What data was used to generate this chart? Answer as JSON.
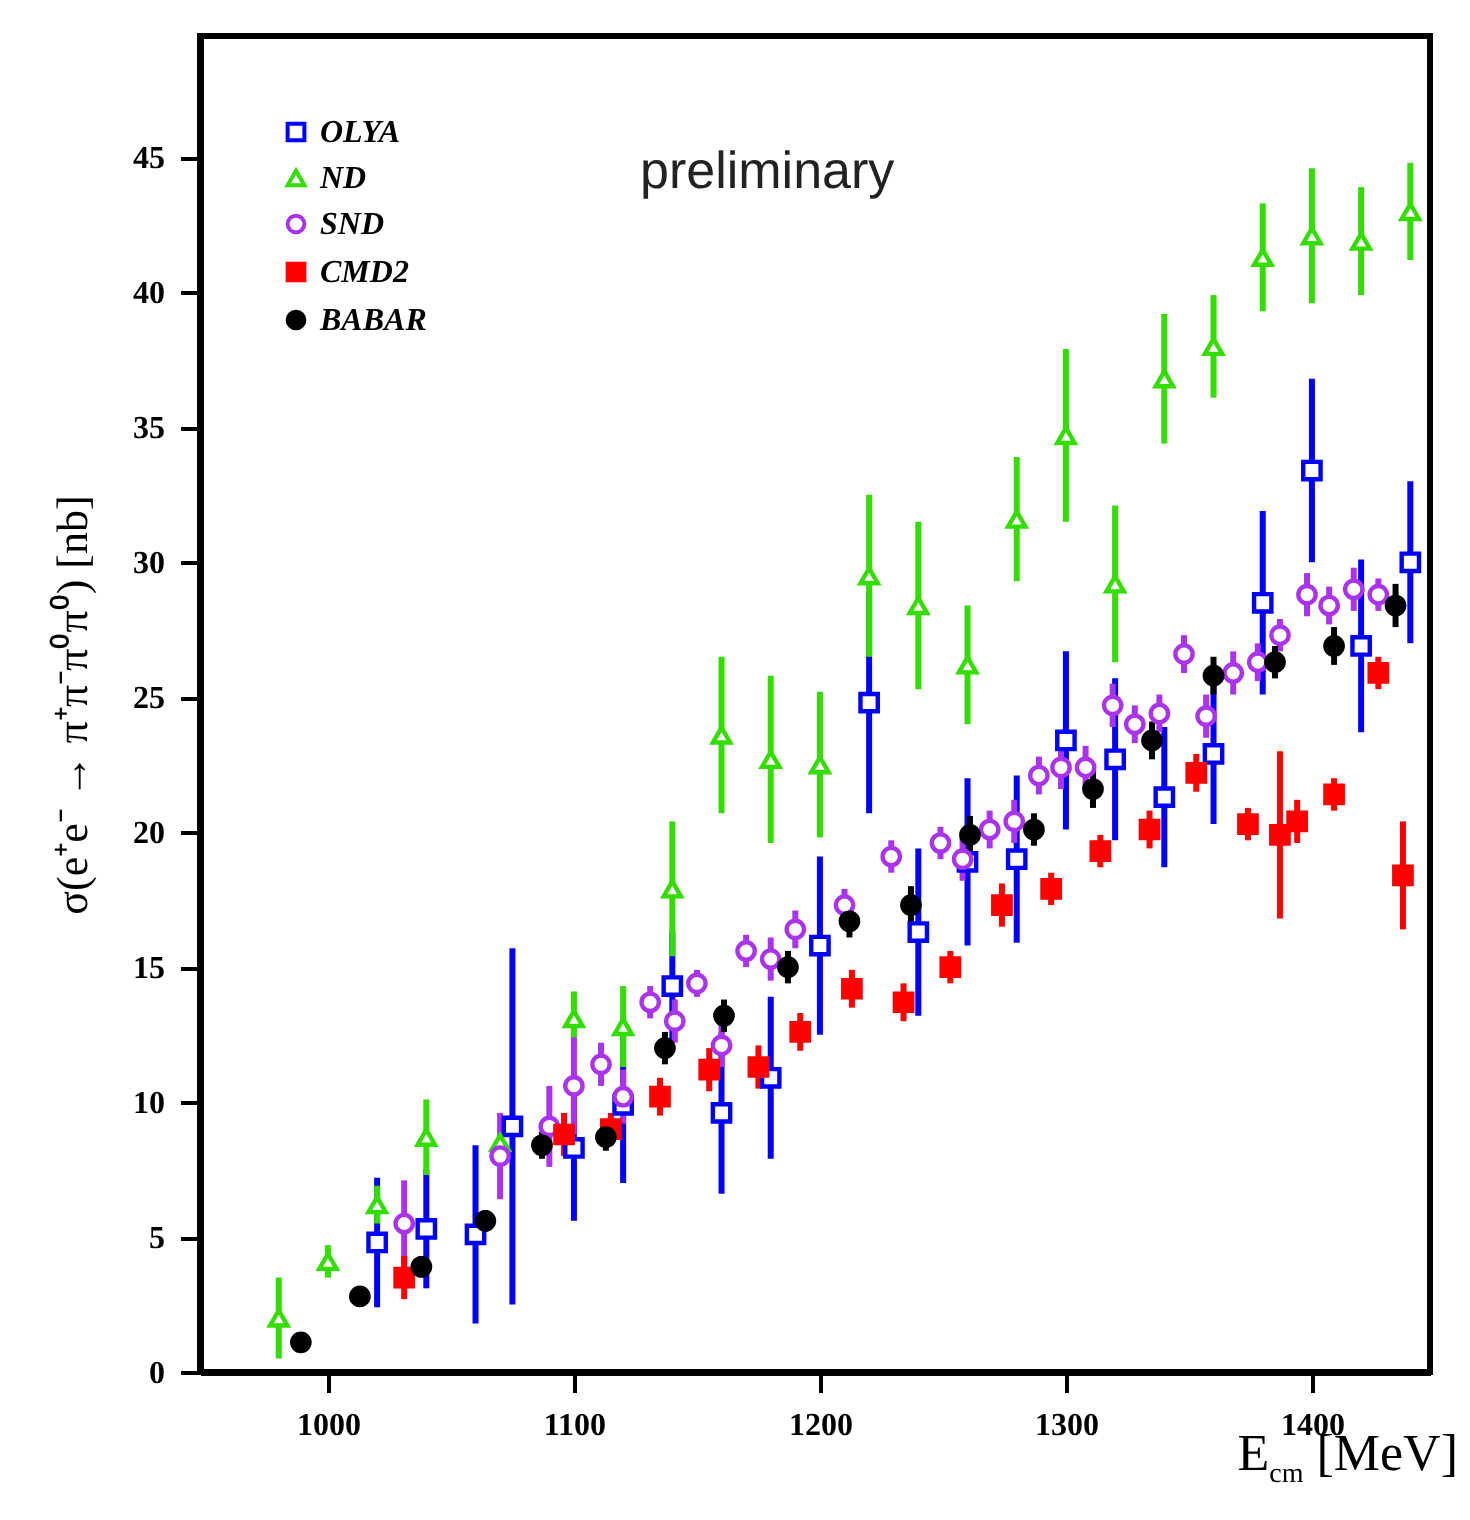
{
  "chart_data": {
    "type": "scatter",
    "xlabel": "E$_{cm}$ [MeV]",
    "ylabel": "σ(e⁺e⁻ → π⁺π⁻π⁰π⁰) [nb]",
    "annotations": [
      "preliminary"
    ],
    "xlim": [
      948,
      1448
    ],
    "xticks": [
      1000,
      1100,
      1200,
      1300,
      1400
    ],
    "ylim": [
      0,
      49.5
    ],
    "yticks": [
      0,
      5,
      10,
      15,
      20,
      25,
      30,
      35,
      40,
      45
    ],
    "grid": false,
    "legend": "top left",
    "series": [
      {
        "name": "OLYA",
        "color": "#0000ff",
        "marker": "square-open",
        "x": [
          1020,
          1040,
          1060,
          1075,
          1100,
          1120,
          1140,
          1160,
          1180,
          1200,
          1220,
          1240,
          1260,
          1280,
          1300,
          1320,
          1340,
          1360,
          1380,
          1400,
          1420,
          1440
        ],
        "values": [
          4.8,
          5.3,
          5.1,
          9.1,
          8.3,
          9.9,
          14.3,
          9.6,
          10.9,
          15.8,
          24.8,
          16.3,
          18.9,
          19.0,
          23.4,
          22.7,
          21.3,
          22.9,
          28.5,
          33.4,
          26.9,
          30.0
        ],
        "errors": [
          2.4,
          2.2,
          3.3,
          6.6,
          2.7,
          2.9,
          2.0,
          3.0,
          3.0,
          3.3,
          4.1,
          3.1,
          3.1,
          3.1,
          3.3,
          3.0,
          2.6,
          2.6,
          3.4,
          3.4,
          3.2,
          3.0
        ]
      },
      {
        "name": "ND",
        "color": "#33dd00",
        "marker": "triangle-open",
        "x": [
          980,
          1000,
          1020,
          1040,
          1070,
          1100,
          1120,
          1140,
          1160,
          1180,
          1200,
          1220,
          1240,
          1260,
          1280,
          1300,
          1320,
          1340,
          1360,
          1380,
          1400,
          1420,
          1440
        ],
        "values": [
          2.0,
          4.1,
          6.2,
          8.7,
          8.5,
          13.1,
          12.8,
          17.9,
          23.6,
          22.7,
          22.5,
          29.5,
          28.4,
          26.2,
          31.6,
          34.7,
          29.2,
          36.8,
          38.0,
          41.3,
          42.1,
          41.9,
          43.0
        ],
        "errors": [
          1.5,
          0.6,
          0.7,
          1.4,
          null,
          1.0,
          1.5,
          2.5,
          2.9,
          3.1,
          2.7,
          3.0,
          3.1,
          2.2,
          2.3,
          3.2,
          2.9,
          2.4,
          1.9,
          2.0,
          2.5,
          2.0,
          1.8
        ]
      },
      {
        "name": "SND",
        "color": "#aa33ee",
        "marker": "circle-open",
        "x": [
          1031,
          1070,
          1090,
          1100,
          1111,
          1120,
          1131,
          1141,
          1150,
          1160,
          1170,
          1180,
          1190,
          1210,
          1229,
          1249,
          1258,
          1269,
          1279,
          1289,
          1298,
          1308,
          1319,
          1328,
          1338,
          1348,
          1357,
          1368,
          1378,
          1387,
          1398,
          1407,
          1417,
          1427
        ],
        "values": [
          5.5,
          8.0,
          9.1,
          10.6,
          11.4,
          10.2,
          13.7,
          13.0,
          14.4,
          12.1,
          15.6,
          15.3,
          16.4,
          17.3,
          19.1,
          19.6,
          19.0,
          20.1,
          20.4,
          22.1,
          22.4,
          22.4,
          24.7,
          24.0,
          24.4,
          26.6,
          24.3,
          25.9,
          26.3,
          27.3,
          28.8,
          28.4,
          29.0,
          28.8
        ],
        "errors": [
          1.6,
          1.6,
          1.5,
          1.8,
          0.8,
          1.0,
          0.6,
          0.8,
          0.5,
          0.8,
          0.6,
          0.8,
          0.7,
          0.6,
          0.6,
          0.6,
          0.8,
          0.7,
          0.8,
          0.7,
          0.8,
          0.8,
          0.8,
          0.7,
          0.7,
          0.7,
          0.8,
          0.8,
          0.7,
          0.6,
          0.8,
          0.7,
          0.8,
          0.6
        ]
      },
      {
        "name": "CMD2",
        "color": "#ff0000",
        "marker": "square",
        "x": [
          1031,
          1096,
          1115,
          1135,
          1155,
          1175,
          1192,
          1213,
          1234,
          1253,
          1274,
          1294,
          1314,
          1334,
          1353,
          1374,
          1387,
          1394,
          1409,
          1427,
          1437
        ],
        "values": [
          3.5,
          8.8,
          9.0,
          10.2,
          11.2,
          11.3,
          12.6,
          14.2,
          13.7,
          15.0,
          17.3,
          17.9,
          19.3,
          20.1,
          22.2,
          20.3,
          19.9,
          20.4,
          21.4,
          25.9,
          18.4
        ],
        "errors": [
          0.8,
          0.8,
          0.6,
          0.7,
          0.8,
          0.8,
          0.7,
          0.7,
          0.7,
          0.6,
          0.8,
          0.6,
          0.6,
          0.7,
          0.7,
          0.6,
          3.1,
          0.8,
          0.6,
          0.6,
          2.0
        ]
      },
      {
        "name": "BABAR",
        "color": "#000000",
        "marker": "circle",
        "x": [
          989,
          1013,
          1038,
          1064,
          1087,
          1113,
          1137,
          1161,
          1187,
          1212,
          1237,
          1261,
          1287,
          1311,
          1335,
          1360,
          1385,
          1409,
          1434
        ],
        "values": [
          1.1,
          2.8,
          3.9,
          5.6,
          8.4,
          8.7,
          12.0,
          13.2,
          15.0,
          16.7,
          17.3,
          19.9,
          20.1,
          21.6,
          23.4,
          25.8,
          26.3,
          26.9,
          28.4
        ],
        "errors": [
          0.3,
          0.3,
          0.4,
          0.4,
          0.5,
          0.5,
          0.6,
          0.6,
          0.6,
          0.6,
          0.7,
          0.7,
          0.6,
          0.7,
          0.7,
          0.7,
          0.6,
          0.7,
          0.8
        ]
      }
    ]
  }
}
